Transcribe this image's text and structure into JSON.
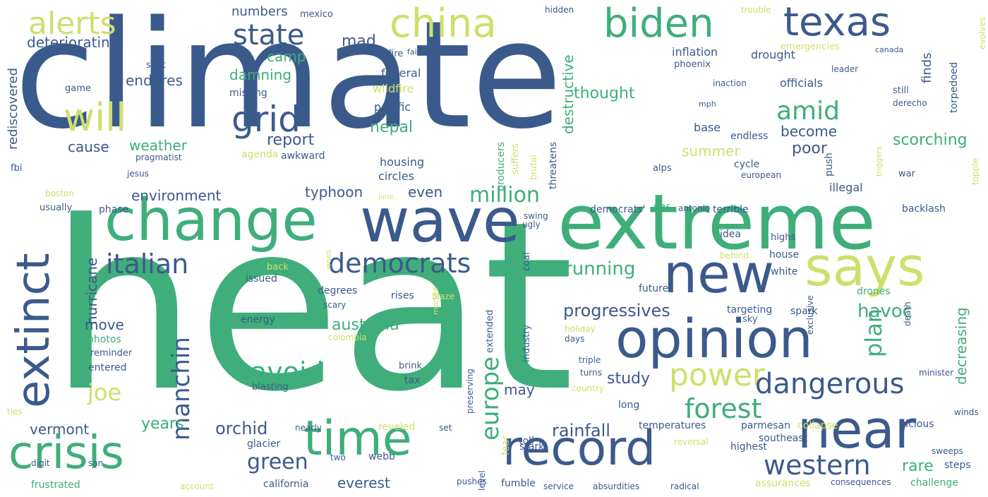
{
  "palette": {
    "navy": "#3b5a8c",
    "teal": "#2e9c8e",
    "green": "#3fae7a",
    "lime": "#cde06c",
    "blue": "#44659b",
    "sea": "#52b58a"
  },
  "words": [
    {
      "text": "climate",
      "color": "navy"
    },
    {
      "text": "heat",
      "color": "green"
    },
    {
      "text": "extreme",
      "color": "green"
    },
    {
      "text": "change",
      "color": "green"
    },
    {
      "text": "wave",
      "color": "navy"
    },
    {
      "text": "new",
      "color": "navy"
    },
    {
      "text": "says",
      "color": "lime"
    },
    {
      "text": "opinion",
      "color": "navy"
    },
    {
      "text": "near",
      "color": "navy"
    },
    {
      "text": "record",
      "color": "navy"
    },
    {
      "text": "time",
      "color": "green"
    },
    {
      "text": "crisis",
      "color": "green"
    },
    {
      "text": "extinct",
      "color": "navy"
    },
    {
      "text": "china",
      "color": "lime"
    },
    {
      "text": "biden",
      "color": "green"
    },
    {
      "text": "texas",
      "color": "navy"
    },
    {
      "text": "will",
      "color": "lime"
    },
    {
      "text": "grid",
      "color": "navy"
    },
    {
      "text": "state",
      "color": "navy"
    },
    {
      "text": "alerts",
      "color": "lime"
    },
    {
      "text": "italian",
      "color": "navy"
    },
    {
      "text": "democrats",
      "color": "navy"
    },
    {
      "text": "power",
      "color": "lime"
    },
    {
      "text": "dangerous",
      "color": "navy"
    },
    {
      "text": "western",
      "color": "navy"
    },
    {
      "text": "forest",
      "color": "green"
    },
    {
      "text": "avoid",
      "color": "green"
    },
    {
      "text": "joe",
      "color": "lime"
    },
    {
      "text": "manchin",
      "color": "navy"
    },
    {
      "text": "europe",
      "color": "green"
    },
    {
      "text": "plan",
      "color": "green"
    },
    {
      "text": "amid",
      "color": "green"
    },
    {
      "text": "million",
      "color": "green"
    },
    {
      "text": "green",
      "color": "navy"
    },
    {
      "text": "running",
      "color": "green"
    },
    {
      "text": "progressives",
      "color": "navy"
    },
    {
      "text": "havoc",
      "color": "green"
    },
    {
      "text": "australia",
      "color": "green"
    },
    {
      "text": "study",
      "color": "navy"
    },
    {
      "text": "rainfall",
      "color": "navy"
    },
    {
      "text": "everest",
      "color": "navy"
    },
    {
      "text": "rare",
      "color": "green"
    },
    {
      "text": "orchid",
      "color": "navy"
    },
    {
      "text": "years",
      "color": "green"
    },
    {
      "text": "vermont",
      "color": "navy"
    },
    {
      "text": "hurricane",
      "color": "navy"
    },
    {
      "text": "environment",
      "color": "navy"
    },
    {
      "text": "typhoon",
      "color": "navy"
    },
    {
      "text": "even",
      "color": "navy"
    },
    {
      "text": "nepal",
      "color": "green"
    },
    {
      "text": "report",
      "color": "navy"
    },
    {
      "text": "cause",
      "color": "navy"
    },
    {
      "text": "weather",
      "color": "green"
    },
    {
      "text": "endures",
      "color": "navy"
    },
    {
      "text": "camp",
      "color": "green"
    },
    {
      "text": "damning",
      "color": "green"
    },
    {
      "text": "mad",
      "color": "navy"
    },
    {
      "text": "deteriorating'",
      "color": "navy"
    },
    {
      "text": "numbers",
      "color": "navy"
    },
    {
      "text": "mexico",
      "color": "navy"
    },
    {
      "text": "thought",
      "color": "green"
    },
    {
      "text": "scorching",
      "color": "green"
    },
    {
      "text": "become",
      "color": "navy"
    },
    {
      "text": "poor",
      "color": "navy"
    },
    {
      "text": "summer",
      "color": "lime"
    },
    {
      "text": "destructive",
      "color": "green"
    },
    {
      "text": "decreasing",
      "color": "green"
    },
    {
      "text": "move",
      "color": "navy"
    },
    {
      "text": "may",
      "color": "navy"
    },
    {
      "text": "rediscovered",
      "color": "navy"
    },
    {
      "text": "finds",
      "color": "navy"
    },
    {
      "text": "inflation",
      "color": "navy"
    },
    {
      "text": "drought",
      "color": "navy"
    },
    {
      "text": "officials",
      "color": "navy"
    },
    {
      "text": "federal",
      "color": "navy"
    },
    {
      "text": "wildfire",
      "color": "lime"
    },
    {
      "text": "pacific",
      "color": "navy"
    },
    {
      "text": "housing",
      "color": "navy"
    },
    {
      "text": "circles",
      "color": "navy"
    },
    {
      "text": "awkward",
      "color": "navy"
    },
    {
      "text": "agenda",
      "color": "lime"
    },
    {
      "text": "base",
      "color": "navy"
    },
    {
      "text": "endless",
      "color": "navy"
    },
    {
      "text": "cycle",
      "color": "navy"
    },
    {
      "text": "push",
      "color": "navy"
    },
    {
      "text": "illegal",
      "color": "navy"
    },
    {
      "text": "terrible",
      "color": "navy"
    },
    {
      "text": "backlash",
      "color": "navy"
    },
    {
      "text": "democrats'",
      "color": "navy"
    },
    {
      "text": "gas",
      "color": "green"
    },
    {
      "text": "antonio",
      "color": "navy"
    },
    {
      "text": "idea",
      "color": "navy"
    },
    {
      "text": "highs",
      "color": "navy"
    },
    {
      "text": "house",
      "color": "navy"
    },
    {
      "text": "white",
      "color": "navy"
    },
    {
      "text": "behind",
      "color": "lime"
    },
    {
      "text": "future",
      "color": "navy"
    },
    {
      "text": "targeting",
      "color": "navy"
    },
    {
      "text": "spark",
      "color": "navy"
    },
    {
      "text": "drones",
      "color": "green"
    },
    {
      "text": "exclusive",
      "color": "navy"
    },
    {
      "text": "death",
      "color": "navy"
    },
    {
      "text": "minister",
      "color": "navy"
    },
    {
      "text": "temperatures",
      "color": "navy"
    },
    {
      "text": "parmesan",
      "color": "navy"
    },
    {
      "text": "southeast",
      "color": "navy"
    },
    {
      "text": "highest",
      "color": "navy"
    },
    {
      "text": "stark",
      "color": "navy"
    },
    {
      "text": "toll",
      "color": "navy"
    },
    {
      "text": "long",
      "color": "navy"
    },
    {
      "text": "collapse",
      "color": "lime"
    },
    {
      "text": "vicious",
      "color": "navy"
    },
    {
      "text": "steps",
      "color": "navy"
    },
    {
      "text": "challenge",
      "color": "green"
    },
    {
      "text": "consequences",
      "color": "navy"
    },
    {
      "text": "assurances",
      "color": "lime"
    },
    {
      "text": "radical",
      "color": "navy"
    },
    {
      "text": "absurdities",
      "color": "navy"
    },
    {
      "text": "service",
      "color": "navy"
    },
    {
      "text": "fumble",
      "color": "navy"
    },
    {
      "text": "pushes",
      "color": "navy"
    },
    {
      "text": "california",
      "color": "navy"
    },
    {
      "text": "frustrated",
      "color": "green"
    },
    {
      "text": "account",
      "color": "lime"
    },
    {
      "text": "digit",
      "color": "navy"
    },
    {
      "text": "san",
      "color": "navy"
    },
    {
      "text": "two",
      "color": "navy"
    },
    {
      "text": "glacier",
      "color": "navy"
    },
    {
      "text": "nearly",
      "color": "navy"
    },
    {
      "text": "webb",
      "color": "navy"
    },
    {
      "text": "reveled",
      "color": "lime"
    },
    {
      "text": "set",
      "color": "navy"
    },
    {
      "text": "fear",
      "color": "lime"
    },
    {
      "text": "reversal",
      "color": "lime"
    },
    {
      "text": "level",
      "color": "navy"
    },
    {
      "text": "tax",
      "color": "navy"
    },
    {
      "text": "brink",
      "color": "navy"
    },
    {
      "text": "blasting",
      "color": "navy"
    },
    {
      "text": "entered",
      "color": "navy"
    },
    {
      "text": "reminder",
      "color": "navy"
    },
    {
      "text": "photos",
      "color": "green"
    },
    {
      "text": "colombia",
      "color": "lime"
    },
    {
      "text": "energy",
      "color": "navy"
    },
    {
      "text": "degrees",
      "color": "navy"
    },
    {
      "text": "scary",
      "color": "navy"
    },
    {
      "text": "rises",
      "color": "navy"
    },
    {
      "text": "blaze",
      "color": "lime"
    },
    {
      "text": "issued",
      "color": "navy"
    },
    {
      "text": "back",
      "color": "lime"
    },
    {
      "text": "woes",
      "color": "lime"
    },
    {
      "text": "market",
      "color": "lime"
    },
    {
      "text": "week",
      "color": "green"
    },
    {
      "text": "coal",
      "color": "navy"
    },
    {
      "text": "ugly",
      "color": "navy"
    },
    {
      "text": "swing",
      "color": "navy"
    },
    {
      "text": "june",
      "color": "lime"
    },
    {
      "text": "boston",
      "color": "lime"
    },
    {
      "text": "usually",
      "color": "navy"
    },
    {
      "text": "phase",
      "color": "navy"
    },
    {
      "text": "jesus",
      "color": "navy"
    },
    {
      "text": "fbi",
      "color": "navy"
    },
    {
      "text": "pragmatist",
      "color": "navy"
    },
    {
      "text": "game",
      "color": "navy"
    },
    {
      "text": "seat",
      "color": "navy"
    },
    {
      "text": "missing",
      "color": "navy"
    },
    {
      "text": "fire",
      "color": "navy"
    },
    {
      "text": "failed",
      "color": "navy"
    },
    {
      "text": "hidden",
      "color": "navy"
    },
    {
      "text": "trouble",
      "color": "lime"
    },
    {
      "text": "emergencies",
      "color": "lime"
    },
    {
      "text": "phoenix",
      "color": "navy"
    },
    {
      "text": "canada",
      "color": "navy"
    },
    {
      "text": "leader",
      "color": "navy"
    },
    {
      "text": "inaction",
      "color": "navy"
    },
    {
      "text": "still",
      "color": "navy"
    },
    {
      "text": "derecho",
      "color": "navy"
    },
    {
      "text": "mph",
      "color": "navy"
    },
    {
      "text": "torpedoed",
      "color": "navy"
    },
    {
      "text": "evolves",
      "color": "lime"
    },
    {
      "text": "war",
      "color": "navy"
    },
    {
      "text": "triggers",
      "color": "lime"
    },
    {
      "text": "topple",
      "color": "lime"
    },
    {
      "text": "european",
      "color": "navy"
    },
    {
      "text": "alps",
      "color": "navy"
    },
    {
      "text": "threatens",
      "color": "navy"
    },
    {
      "text": "brutal",
      "color": "lime"
    },
    {
      "text": "suffers",
      "color": "lime"
    },
    {
      "text": "producers",
      "color": "green"
    },
    {
      "text": "holiday",
      "color": "lime"
    },
    {
      "text": "days",
      "color": "navy"
    },
    {
      "text": "sky",
      "color": "navy"
    },
    {
      "text": "industry",
      "color": "navy"
    },
    {
      "text": "extended",
      "color": "navy"
    },
    {
      "text": "preserving",
      "color": "navy"
    },
    {
      "text": "triple",
      "color": "navy"
    },
    {
      "text": "turns",
      "color": "navy"
    },
    {
      "text": "country",
      "color": "lime"
    },
    {
      "text": "ties",
      "color": "lime"
    },
    {
      "text": "sweeps",
      "color": "navy"
    },
    {
      "text": "winds",
      "color": "navy"
    }
  ]
}
